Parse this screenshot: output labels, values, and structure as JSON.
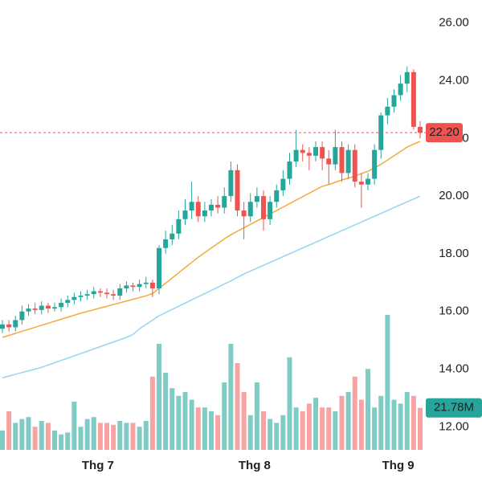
{
  "chart_data": {
    "type": "candlestick",
    "categories": [
      null,
      null,
      null,
      null,
      null,
      null,
      null,
      null,
      null,
      null,
      null,
      null,
      null,
      null,
      null,
      "Thg 7",
      null,
      null,
      null,
      null,
      null,
      null,
      null,
      null,
      null,
      null,
      null,
      null,
      null,
      null,
      null,
      null,
      null,
      null,
      null,
      null,
      null,
      null,
      null,
      "Thg 8",
      null,
      null,
      null,
      null,
      null,
      null,
      null,
      null,
      null,
      null,
      null,
      null,
      null,
      null,
      null,
      null,
      null,
      null,
      null,
      null,
      null,
      "Thg 9",
      null,
      null,
      null
    ],
    "open": [
      15.4,
      15.55,
      15.45,
      15.7,
      16.0,
      16.1,
      16.05,
      16.2,
      16.1,
      16.15,
      16.3,
      16.4,
      16.5,
      16.55,
      16.6,
      16.7,
      16.65,
      16.6,
      16.55,
      16.8,
      16.9,
      16.85,
      16.95,
      17.0,
      16.8,
      18.2,
      18.5,
      18.7,
      19.2,
      19.5,
      19.8,
      19.3,
      19.5,
      19.7,
      19.6,
      20.0,
      20.9,
      19.5,
      19.3,
      19.8,
      20.0,
      19.2,
      19.8,
      20.2,
      20.6,
      21.2,
      21.6,
      21.5,
      21.4,
      21.7,
      21.3,
      21.1,
      21.7,
      20.8,
      21.6,
      20.5,
      20.4,
      20.6,
      21.6,
      22.8,
      23.1,
      23.5,
      23.9,
      24.3,
      22.4
    ],
    "high": [
      15.7,
      15.7,
      15.85,
      16.2,
      16.25,
      16.3,
      16.35,
      16.3,
      16.3,
      16.45,
      16.55,
      16.65,
      16.7,
      16.75,
      16.85,
      16.8,
      16.8,
      16.75,
      16.95,
      17.05,
      17.0,
      17.1,
      17.2,
      17.1,
      18.3,
      18.8,
      19.0,
      19.5,
      19.9,
      20.5,
      20.0,
      19.8,
      19.9,
      20.0,
      20.3,
      21.2,
      21.1,
      19.8,
      20.1,
      20.3,
      20.2,
      20.0,
      20.4,
      20.9,
      21.5,
      22.3,
      21.8,
      21.7,
      21.9,
      21.9,
      21.6,
      22.3,
      21.9,
      21.8,
      21.8,
      20.8,
      20.8,
      21.8,
      22.9,
      23.4,
      23.7,
      24.2,
      24.5,
      24.4,
      22.6
    ],
    "low": [
      15.25,
      15.3,
      15.3,
      15.55,
      15.85,
      15.9,
      15.9,
      15.95,
      16.0,
      16.0,
      16.15,
      16.25,
      16.35,
      16.4,
      16.45,
      16.5,
      16.45,
      16.4,
      16.4,
      16.65,
      16.7,
      16.7,
      16.8,
      16.5,
      16.6,
      18.0,
      18.3,
      18.5,
      19.0,
      19.2,
      19.1,
      19.1,
      19.3,
      19.4,
      19.4,
      19.8,
      19.3,
      18.5,
      19.1,
      19.6,
      18.8,
      19.0,
      19.6,
      20.0,
      20.4,
      21.0,
      21.2,
      20.9,
      21.2,
      20.9,
      20.4,
      20.9,
      20.5,
      20.6,
      20.3,
      19.6,
      20.2,
      20.4,
      21.3,
      22.5,
      22.9,
      23.3,
      23.6,
      22.3,
      22.0
    ],
    "close": [
      15.55,
      15.45,
      15.7,
      16.0,
      16.1,
      16.05,
      16.2,
      16.1,
      16.15,
      16.3,
      16.4,
      16.5,
      16.55,
      16.6,
      16.7,
      16.65,
      16.6,
      16.55,
      16.8,
      16.9,
      16.85,
      16.95,
      17.0,
      16.8,
      18.2,
      18.5,
      18.7,
      19.2,
      19.5,
      19.8,
      19.3,
      19.5,
      19.7,
      19.6,
      20.0,
      20.9,
      19.5,
      19.3,
      19.8,
      20.0,
      19.2,
      19.8,
      20.2,
      20.6,
      21.2,
      21.6,
      21.5,
      21.4,
      21.7,
      21.3,
      21.1,
      21.7,
      20.8,
      21.6,
      20.5,
      20.4,
      20.6,
      21.6,
      22.8,
      23.1,
      23.5,
      23.9,
      24.3,
      22.4,
      22.2
    ],
    "volume": [
      10,
      20,
      14,
      16,
      17,
      12,
      15,
      14,
      10,
      8,
      9,
      25,
      12,
      16,
      17,
      14,
      14,
      13,
      15,
      14,
      14,
      12,
      15,
      38,
      55,
      40,
      32,
      28,
      30,
      26,
      22,
      22,
      20,
      18,
      35,
      55,
      45,
      30,
      18,
      35,
      20,
      16,
      14,
      18,
      48,
      22,
      20,
      24,
      27,
      22,
      22,
      20,
      28,
      30,
      38,
      26,
      42,
      22,
      28,
      70,
      26,
      24,
      30,
      28,
      21.78
    ],
    "series": [
      {
        "color": "#f5a93a",
        "values": [
          15.1,
          15.17,
          15.24,
          15.31,
          15.38,
          15.45,
          15.52,
          15.59,
          15.66,
          15.73,
          15.8,
          15.87,
          15.94,
          16.0,
          16.06,
          16.12,
          16.18,
          16.24,
          16.3,
          16.36,
          16.42,
          16.48,
          16.54,
          16.62,
          16.8,
          16.98,
          17.16,
          17.34,
          17.52,
          17.7,
          17.88,
          18.04,
          18.2,
          18.36,
          18.52,
          18.66,
          18.78,
          18.9,
          19.02,
          19.14,
          19.26,
          19.38,
          19.5,
          19.62,
          19.74,
          19.86,
          19.98,
          20.1,
          20.22,
          20.34,
          20.4,
          20.48,
          20.56,
          20.62,
          20.7,
          20.78,
          20.86,
          20.98,
          21.1,
          21.25,
          21.4,
          21.55,
          21.7,
          21.8,
          21.9
        ]
      },
      {
        "color": "#95d5f2",
        "values": [
          13.7,
          13.76,
          13.82,
          13.88,
          13.94,
          14.0,
          14.06,
          14.14,
          14.22,
          14.3,
          14.38,
          14.46,
          14.54,
          14.62,
          14.7,
          14.78,
          14.86,
          14.94,
          15.02,
          15.1,
          15.2,
          15.4,
          15.55,
          15.7,
          15.85,
          15.96,
          16.07,
          16.18,
          16.29,
          16.4,
          16.51,
          16.62,
          16.73,
          16.84,
          16.95,
          17.06,
          17.18,
          17.3,
          17.4,
          17.5,
          17.6,
          17.7,
          17.8,
          17.9,
          18.0,
          18.1,
          18.2,
          18.3,
          18.4,
          18.5,
          18.6,
          18.7,
          18.8,
          18.9,
          19.0,
          19.1,
          19.2,
          19.3,
          19.4,
          19.5,
          19.6,
          19.7,
          19.8,
          19.9,
          20.0
        ]
      }
    ],
    "up_color": "#26a69a",
    "down_color": "#ef5350",
    "volume_up_color": "#80cbc4",
    "volume_down_color": "#f7a3a3",
    "ylim": [
      11.2,
      26.8
    ],
    "yticks": [
      {
        "value": 12,
        "label": "12.00"
      },
      {
        "value": 14,
        "label": "14.00"
      },
      {
        "value": 16,
        "label": "16.00"
      },
      {
        "value": 18,
        "label": "18.00"
      },
      {
        "value": 20,
        "label": "20.00"
      },
      {
        "value": 22,
        "label": "22.00"
      },
      {
        "value": 24,
        "label": "24.00"
      },
      {
        "value": 26,
        "label": "26.00"
      }
    ],
    "volume_lim": [
      0,
      95
    ],
    "last_price": {
      "value": 22.2,
      "label": "22.20"
    },
    "last_volume": {
      "value": 21.78,
      "label": "21.78M"
    }
  }
}
